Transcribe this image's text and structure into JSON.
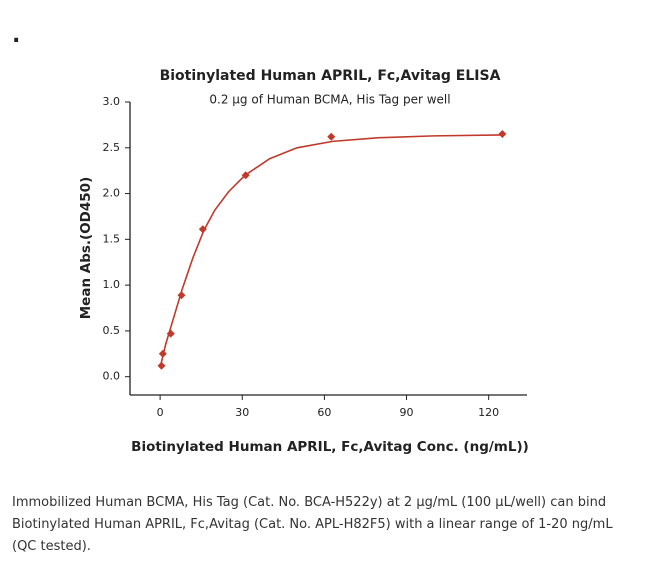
{
  "marker": ".",
  "chart_data": {
    "type": "scatter",
    "title": "Biotinylated Human APRIL, Fc,Avitag ELISA",
    "subtitle": "0.2 µg of Human BCMA, His Tag per well",
    "x_label": "Biotinylated Human APRIL, Fc,Avitag Conc. (ng/mL))",
    "y_label": "Mean Abs.(OD450)",
    "xlim": [
      -11,
      134
    ],
    "xticks": [
      0,
      30,
      60,
      90,
      120
    ],
    "ylim": [
      -0.2,
      3.0
    ],
    "yticks": [
      {
        "value": 0,
        "label": "0.0"
      },
      {
        "value": 0.5,
        "label": "0.5"
      },
      {
        "value": 1,
        "label": "1.0"
      },
      {
        "value": 1.5,
        "label": "1.5"
      },
      {
        "value": 2,
        "label": "2.0"
      },
      {
        "value": 2.5,
        "label": "2.5"
      },
      {
        "value": 3,
        "label": "3.0"
      }
    ],
    "series": [
      {
        "color": "#c0392b",
        "x": [
          0.5,
          1,
          3.9,
          7.8,
          15.6,
          31.25,
          62.5,
          125
        ],
        "values": [
          0.12,
          0.25,
          0.47,
          0.89,
          1.61,
          2.2,
          2.62,
          2.65
        ]
      }
    ],
    "curve": {
      "color": "#c0392b",
      "x": [
        0,
        2,
        5,
        8,
        12,
        16,
        20,
        25,
        31,
        40,
        50,
        63,
        80,
        100,
        125
      ],
      "values": [
        0.1,
        0.35,
        0.65,
        0.95,
        1.3,
        1.6,
        1.82,
        2.02,
        2.2,
        2.38,
        2.5,
        2.57,
        2.61,
        2.63,
        2.64
      ]
    }
  },
  "caption": [
    "Immobilized Human BCMA, His Tag (Cat. No. BCA-H522y) at 2 µg/mL (100 µL/well) can bind",
    "Biotinylated Human APRIL, Fc,Avitag (Cat. No. APL-H82F5) with a linear range of 1-20 ng/mL",
    "(QC tested)."
  ]
}
